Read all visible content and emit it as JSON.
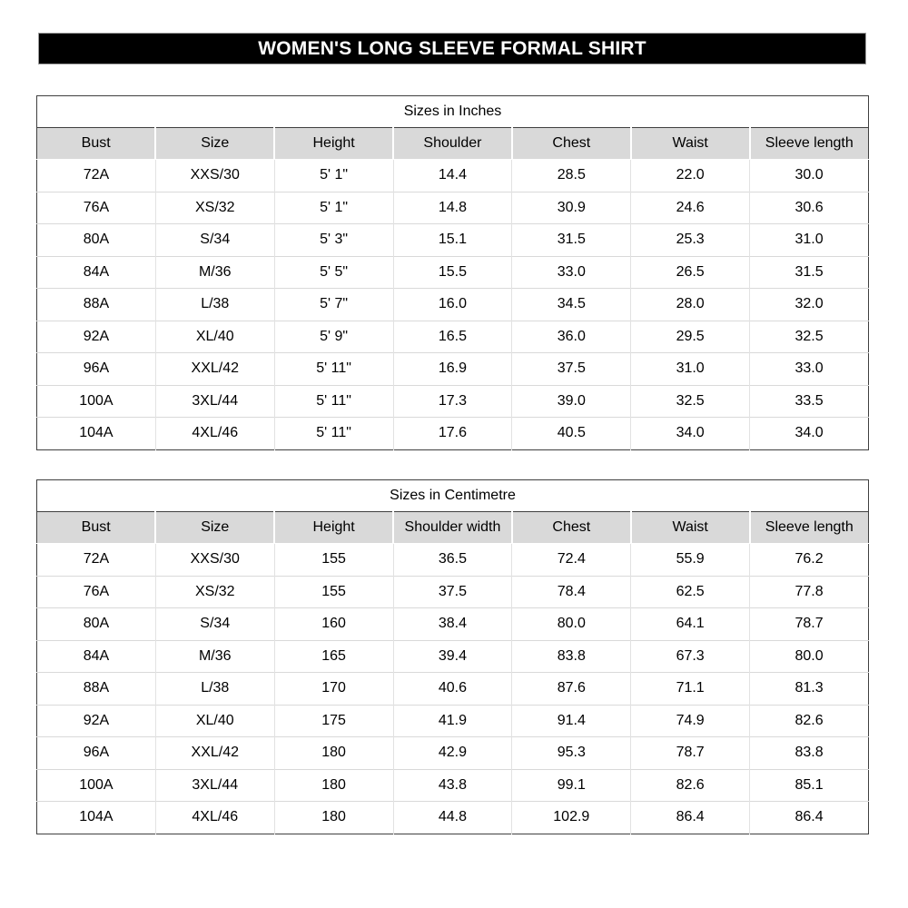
{
  "header": {
    "title": "WOMEN'S LONG SLEEVE FORMAL SHIRT",
    "bg_color": "#000000",
    "text_color": "#ffffff"
  },
  "colors": {
    "header_row_bg": "#d9d9d9",
    "outer_border": "#3f3f3f",
    "row_divider": "#d9d9d9"
  },
  "tables": [
    {
      "title": "Sizes in Inches",
      "columns": [
        "Bust",
        "Size",
        "Height",
        "Shoulder",
        "Chest",
        "Waist",
        "Sleeve length"
      ],
      "rows": [
        [
          "72A",
          "XXS/30",
          "5' 1\"",
          "14.4",
          "28.5",
          "22.0",
          "30.0"
        ],
        [
          "76A",
          "XS/32",
          "5' 1\"",
          "14.8",
          "30.9",
          "24.6",
          "30.6"
        ],
        [
          "80A",
          "S/34",
          "5' 3\"",
          "15.1",
          "31.5",
          "25.3",
          "31.0"
        ],
        [
          "84A",
          "M/36",
          "5' 5\"",
          "15.5",
          "33.0",
          "26.5",
          "31.5"
        ],
        [
          "88A",
          "L/38",
          "5' 7\"",
          "16.0",
          "34.5",
          "28.0",
          "32.0"
        ],
        [
          "92A",
          "XL/40",
          "5' 9\"",
          "16.5",
          "36.0",
          "29.5",
          "32.5"
        ],
        [
          "96A",
          "XXL/42",
          "5' 11\"",
          "16.9",
          "37.5",
          "31.0",
          "33.0"
        ],
        [
          "100A",
          "3XL/44",
          "5' 11\"",
          "17.3",
          "39.0",
          "32.5",
          "33.5"
        ],
        [
          "104A",
          "4XL/46",
          "5' 11\"",
          "17.6",
          "40.5",
          "34.0",
          "34.0"
        ]
      ]
    },
    {
      "title": "Sizes in Centimetre",
      "columns": [
        "Bust",
        "Size",
        "Height",
        "Shoulder width",
        "Chest",
        "Waist",
        "Sleeve length"
      ],
      "rows": [
        [
          "72A",
          "XXS/30",
          "155",
          "36.5",
          "72.4",
          "55.9",
          "76.2"
        ],
        [
          "76A",
          "XS/32",
          "155",
          "37.5",
          "78.4",
          "62.5",
          "77.8"
        ],
        [
          "80A",
          "S/34",
          "160",
          "38.4",
          "80.0",
          "64.1",
          "78.7"
        ],
        [
          "84A",
          "M/36",
          "165",
          "39.4",
          "83.8",
          "67.3",
          "80.0"
        ],
        [
          "88A",
          "L/38",
          "170",
          "40.6",
          "87.6",
          "71.1",
          "81.3"
        ],
        [
          "92A",
          "XL/40",
          "175",
          "41.9",
          "91.4",
          "74.9",
          "82.6"
        ],
        [
          "96A",
          "XXL/42",
          "180",
          "42.9",
          "95.3",
          "78.7",
          "83.8"
        ],
        [
          "100A",
          "3XL/44",
          "180",
          "43.8",
          "99.1",
          "82.6",
          "85.1"
        ],
        [
          "104A",
          "4XL/46",
          "180",
          "44.8",
          "102.9",
          "86.4",
          "86.4"
        ]
      ]
    }
  ]
}
